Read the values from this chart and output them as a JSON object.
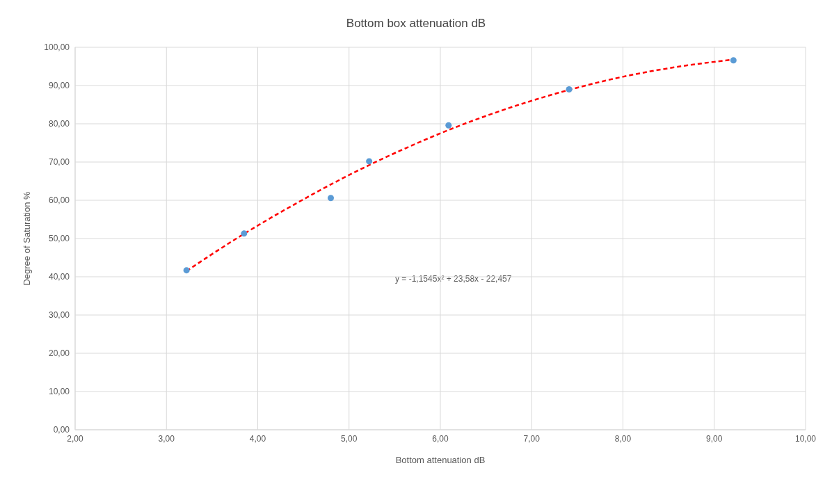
{
  "chart_data": {
    "type": "scatter",
    "title": "Bottom box attenuation dB",
    "xlabel": "Bottom attenuation dB",
    "ylabel": "Degree of Saturation %",
    "xlim": [
      2,
      10
    ],
    "ylim": [
      0,
      100
    ],
    "xticks": [
      {
        "value": 2,
        "label": "2,00"
      },
      {
        "value": 3,
        "label": "3,00"
      },
      {
        "value": 4,
        "label": "4,00"
      },
      {
        "value": 5,
        "label": "5,00"
      },
      {
        "value": 6,
        "label": "6,00"
      },
      {
        "value": 7,
        "label": "7,00"
      },
      {
        "value": 8,
        "label": "8,00"
      },
      {
        "value": 9,
        "label": "9,00"
      },
      {
        "value": 10,
        "label": "10,00"
      }
    ],
    "yticks": [
      {
        "value": 0,
        "label": "0,00"
      },
      {
        "value": 10,
        "label": "10,00"
      },
      {
        "value": 20,
        "label": "20,00"
      },
      {
        "value": 30,
        "label": "30,00"
      },
      {
        "value": 40,
        "label": "40,00"
      },
      {
        "value": 50,
        "label": "50,00"
      },
      {
        "value": 60,
        "label": "60,00"
      },
      {
        "value": 70,
        "label": "70,00"
      },
      {
        "value": 80,
        "label": "80,00"
      },
      {
        "value": 90,
        "label": "90,00"
      },
      {
        "value": 100,
        "label": "100,00"
      }
    ],
    "grid": true,
    "series": [
      {
        "type": "scatter",
        "color": "#5b9bd5",
        "marker": "circle",
        "x": [
          3.22,
          3.85,
          4.8,
          5.22,
          6.09,
          7.41,
          9.21
        ],
        "values": [
          41.7,
          51.3,
          60.6,
          70.2,
          79.6,
          89.0,
          96.6
        ]
      },
      {
        "type": "line",
        "color": "#ff0000",
        "marker": "none",
        "line_style": "dashed",
        "x": [
          3.22,
          3.8,
          4.4,
          5.0,
          5.6,
          6.2,
          6.8,
          7.4,
          8.0,
          8.6,
          9.21
        ],
        "values": [
          41.5,
          50.5,
          58.9,
          66.6,
          73.4,
          79.4,
          84.5,
          88.8,
          92.3,
          94.9,
          96.8
        ]
      }
    ],
    "annotations": [
      "y = -1,1545x² + 23,58x - 22,457"
    ]
  }
}
